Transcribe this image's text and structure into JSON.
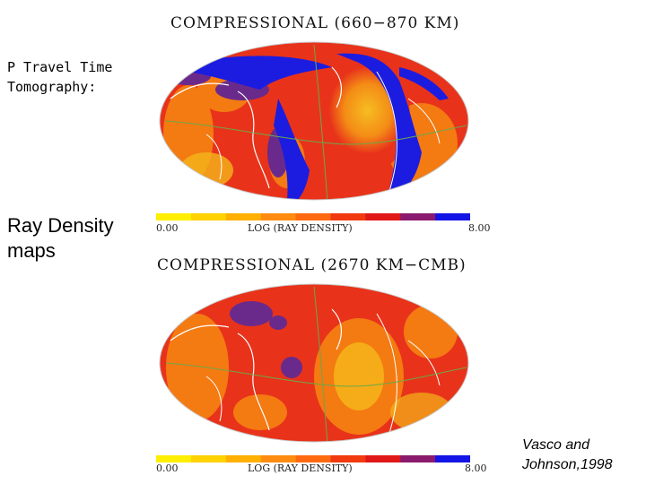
{
  "left_text": {
    "method_title": "P Travel Time Tomography:",
    "caption": "Ray Density maps"
  },
  "citation": "Vasco and Johnson,1998",
  "panels": [
    {
      "title": "COMPRESSIONAL (660−870 KM)",
      "colorbar": {
        "min_label": "0.00",
        "mid_label": "LOG (RAY DENSITY)",
        "max_label": "8.00"
      }
    },
    {
      "title": "COMPRESSIONAL (2670 KM−CMB)",
      "colorbar": {
        "min_label": "0.00",
        "mid_label": "LOG (RAY DENSITY)",
        "max_label": "8.00"
      }
    }
  ],
  "colorbar_colors": [
    "#ffee00",
    "#ffd200",
    "#ffb000",
    "#ff8c10",
    "#ff6a10",
    "#f23a10",
    "#e01818",
    "#8b1a6e",
    "#1414e6"
  ],
  "map_colors": {
    "base_red": "#e8331a",
    "orange": "#f47a12",
    "yellow": "#f4b51a",
    "purple": "#6a2a8c",
    "blue": "#1c1ce0",
    "coastline": "#ffffff",
    "plate_boundary": "#6ca84a"
  }
}
